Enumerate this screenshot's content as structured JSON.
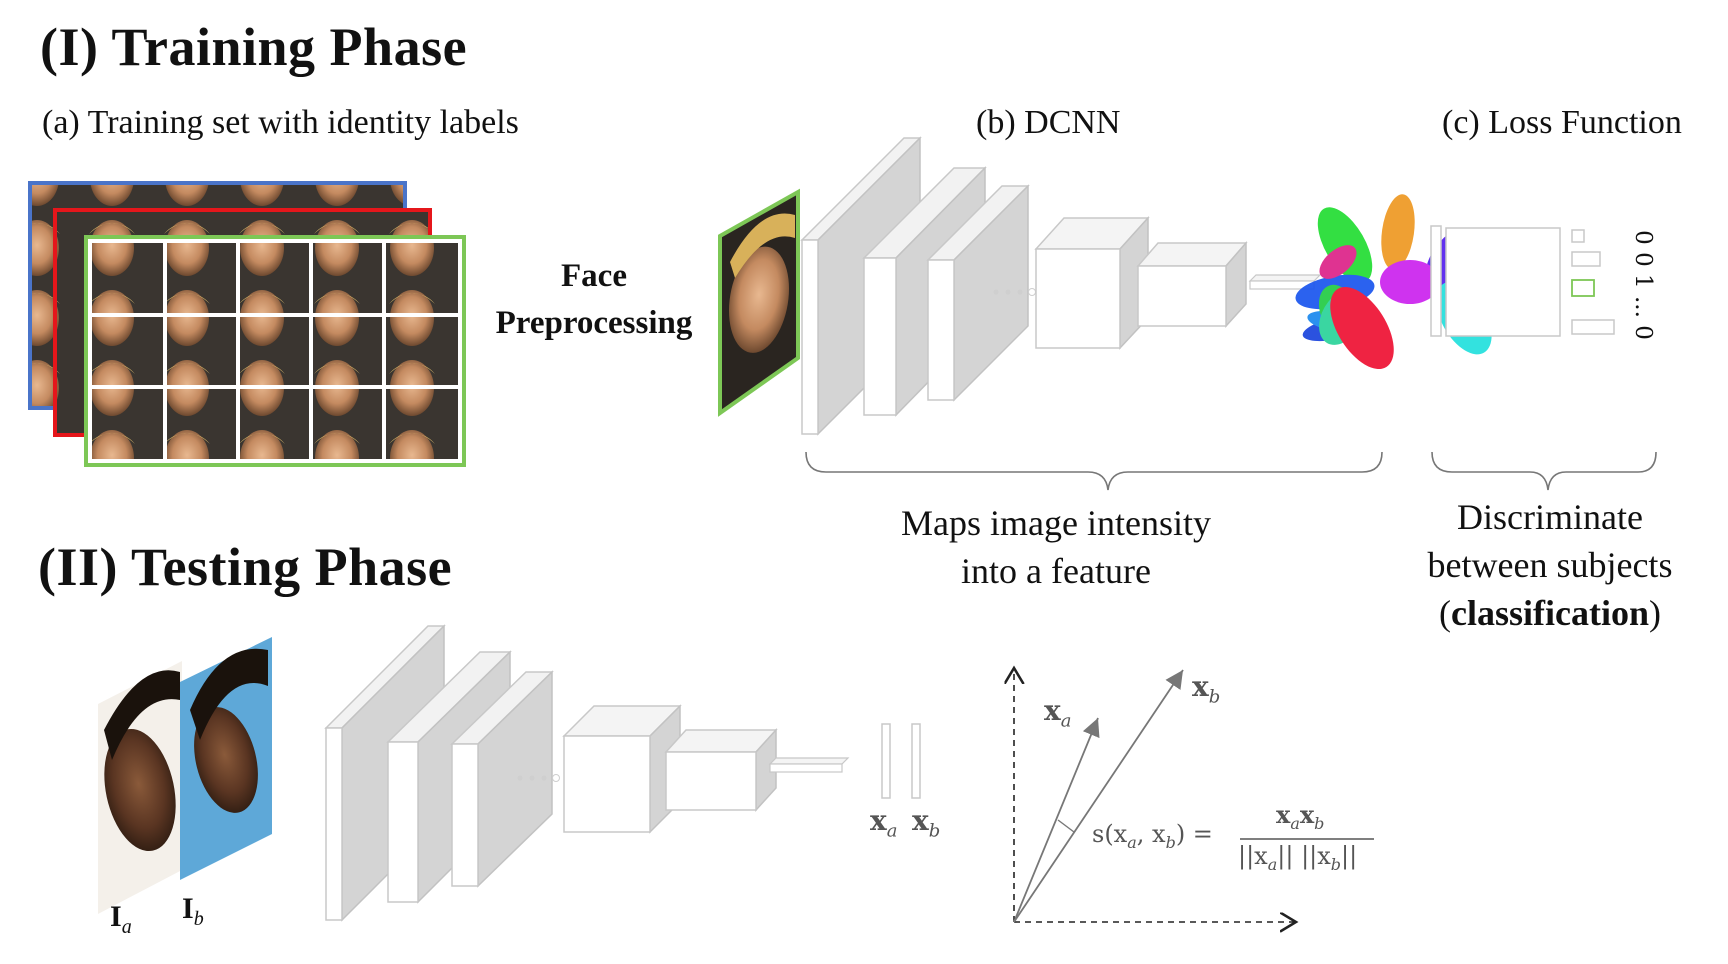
{
  "training": {
    "title": "(I) Training Phase",
    "label_a": "(a) Training set with identity labels",
    "label_b": "(b) DCNN",
    "label_c": "(c) Loss Function",
    "preprocess_line1": "Face",
    "preprocess_line2": "Preprocessing",
    "dcnn_caption_line1": "Maps image intensity",
    "dcnn_caption_line2": "into a feature",
    "loss_caption_line1": "Discriminate",
    "loss_caption_line2": "between subjects",
    "loss_caption_open": "(",
    "loss_caption_bold": "classification",
    "loss_caption_close": ")",
    "one_hot": "0 0 1 ... 0"
  },
  "testing": {
    "title": "(II) Testing Phase",
    "img_a": "I",
    "img_a_sub": "a",
    "img_b": "I",
    "img_b_sub": "b",
    "feat_a": "x",
    "feat_a_sub": "a",
    "feat_b": "x",
    "feat_b_sub": "b",
    "vec_a": "x",
    "vec_a_sub": "a",
    "vec_b": "x",
    "vec_b_sub": "b",
    "similarity_lhs": "s(x",
    "similarity_mid": ", x",
    "similarity_rhs": ") =",
    "numerator": "x",
    "denominator_a": "||x",
    "denominator_mid": "|| ||x",
    "denominator_end": "||"
  },
  "colors": {
    "frame_blue": "#4a74c9",
    "frame_red": "#e5161b",
    "frame_green": "#7dc756",
    "layer_gray": "#d4d4d4",
    "layer_dark": "#c2c2c2"
  },
  "icons": [
    "face-photo",
    "cluster-scatter"
  ]
}
